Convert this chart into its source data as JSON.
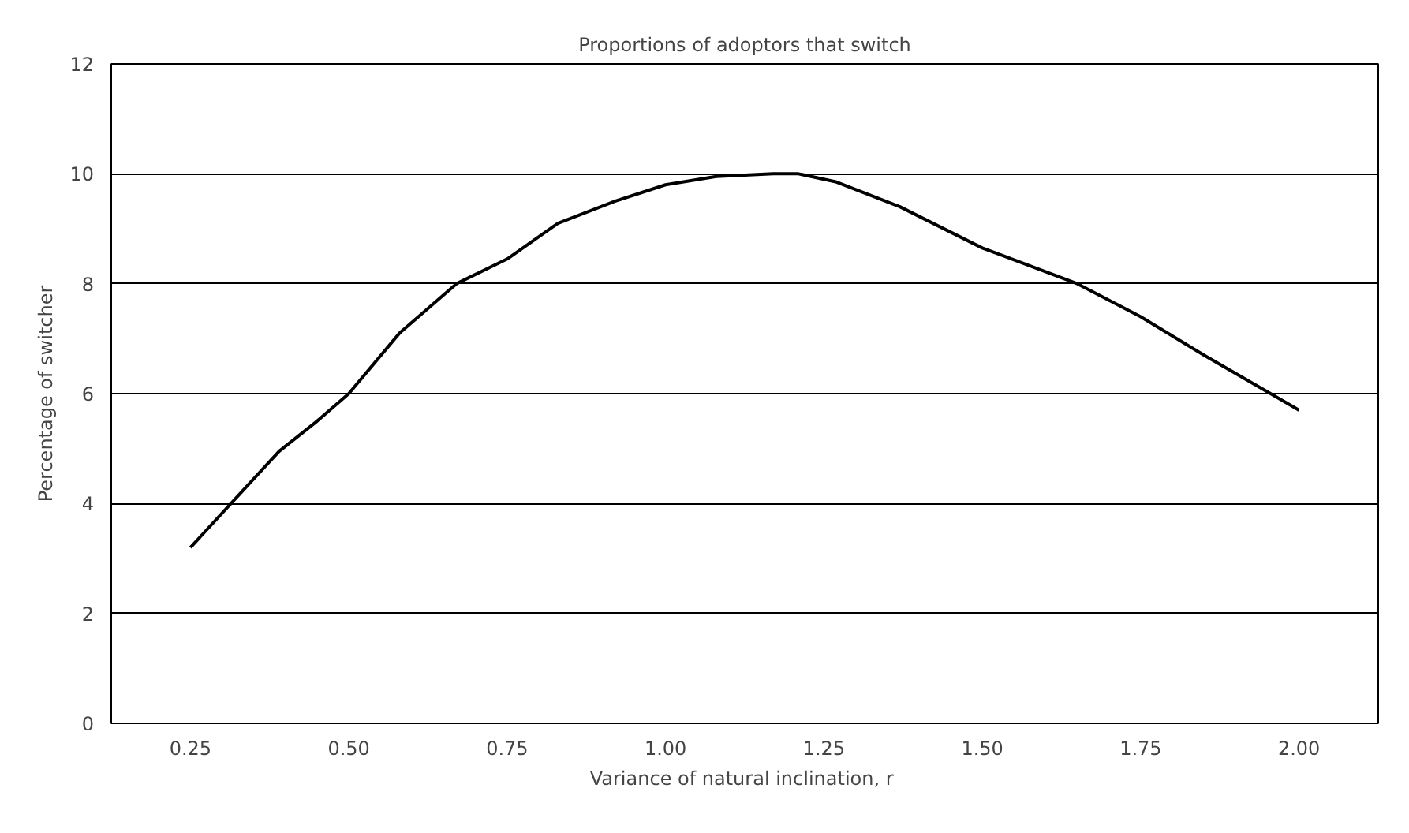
{
  "chart_data": {
    "type": "line",
    "title": "Proportions of adoptors that switch",
    "xlabel": "Variance of natural inclination,  r",
    "ylabel": "Percentage of switcher",
    "x": [
      0.25,
      0.33,
      0.39,
      0.45,
      0.5,
      0.58,
      0.67,
      0.75,
      0.83,
      0.92,
      1.0,
      1.08,
      1.17,
      1.21,
      1.27,
      1.37,
      1.5,
      1.65,
      1.75,
      1.85,
      2.0
    ],
    "series": [
      {
        "color": "#000000",
        "values": [
          3.2,
          4.2,
          4.95,
          5.5,
          6.0,
          7.1,
          8.0,
          8.45,
          9.1,
          9.5,
          9.8,
          9.95,
          10.0,
          10.0,
          9.85,
          9.4,
          8.65,
          8.0,
          7.4,
          6.7,
          5.7
        ]
      }
    ],
    "xlim": [
      0.125,
      2.125
    ],
    "xticks": [
      {
        "value": 0.25,
        "label": "0.25"
      },
      {
        "value": 0.5,
        "label": "0.50"
      },
      {
        "value": 0.75,
        "label": "0.75"
      },
      {
        "value": 1.0,
        "label": "1.00"
      },
      {
        "value": 1.25,
        "label": "1.25"
      },
      {
        "value": 1.5,
        "label": "1.50"
      },
      {
        "value": 1.75,
        "label": "1.75"
      },
      {
        "value": 2.0,
        "label": "2.00"
      }
    ],
    "ylim": [
      0,
      12
    ],
    "yticks": [
      0,
      2,
      4,
      6,
      8,
      10,
      12
    ],
    "grid": "y",
    "marker": "none",
    "line_style": "solid"
  }
}
